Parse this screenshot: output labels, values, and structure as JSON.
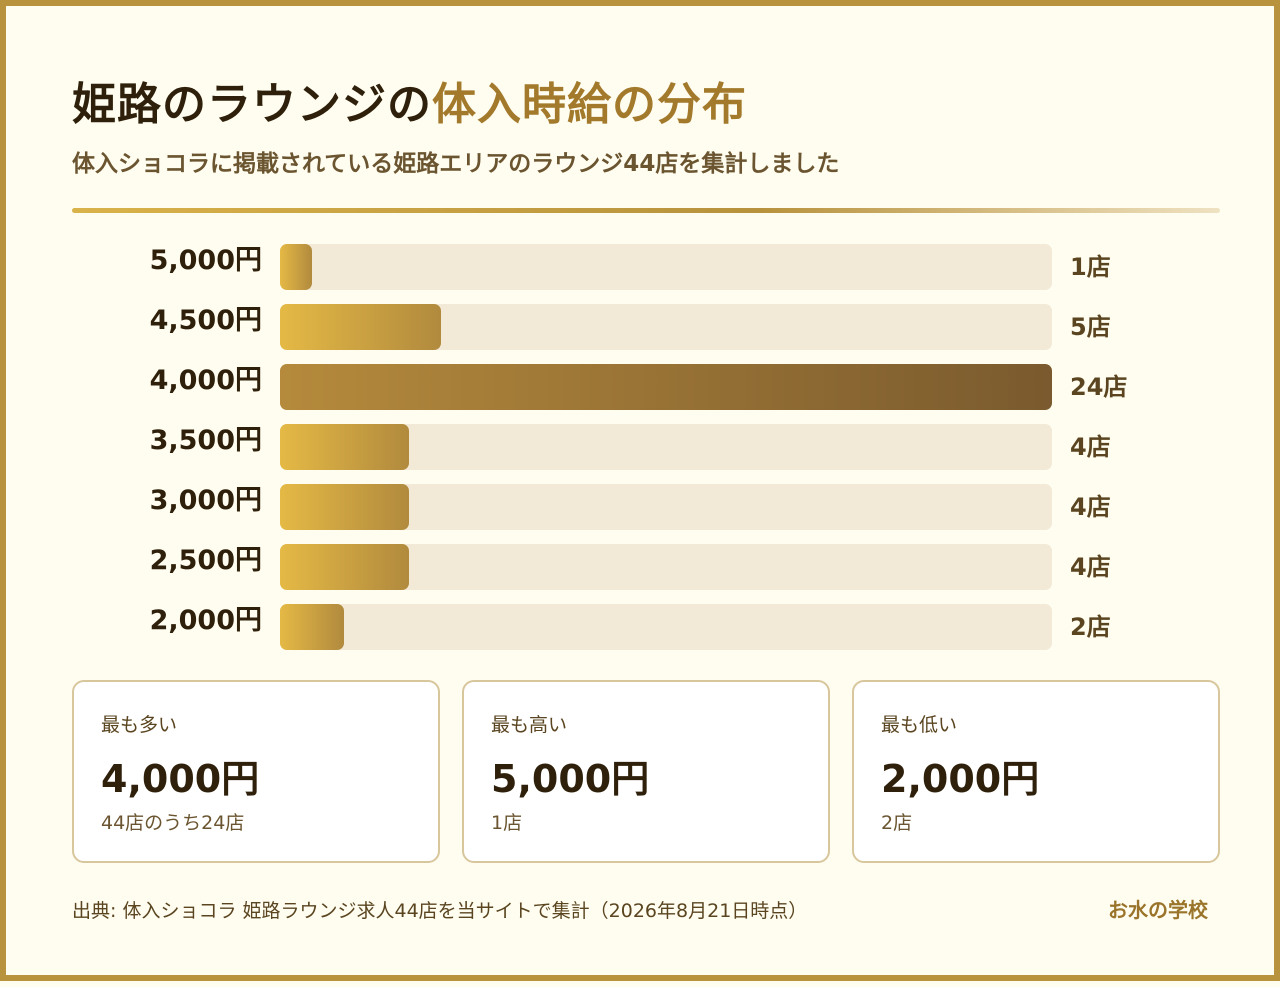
{
  "header": {
    "title_main": "姫路のラウンジの",
    "title_accent": "体入時給の分布",
    "subtitle": "体入ショコラに掲載されている姫路エリアのラウンジ44店を集計しました"
  },
  "chart_data": {
    "type": "bar",
    "orientation": "horizontal",
    "categories": [
      "5,000円",
      "4,500円",
      "4,000円",
      "3,500円",
      "3,000円",
      "2,500円",
      "2,000円"
    ],
    "values": [
      1,
      5,
      24,
      4,
      4,
      4,
      2
    ],
    "value_labels": [
      "1店",
      "5店",
      "24店",
      "4店",
      "4店",
      "4店",
      "2店"
    ],
    "xlim": [
      0,
      24
    ],
    "grid": false,
    "colors": {
      "bar_start": "#e5b945",
      "bar_end": "#b18a3e",
      "max_start": "#b58a3c",
      "max_end": "#7a5a2e",
      "track": "#f2e9d6"
    }
  },
  "cards": [
    {
      "label": "最も多い",
      "value": "4,000円",
      "note": "44店のうち24店"
    },
    {
      "label": "最も高い",
      "value": "5,000円",
      "note": "1店"
    },
    {
      "label": "最も低い",
      "value": "2,000円",
      "note": "2店"
    }
  ],
  "footer": {
    "source": "出典: 体入ショコラ 姫路ラウンジ求人44店を当サイトで集計（2026年8月21日時点）",
    "brand": "お水の学校"
  }
}
